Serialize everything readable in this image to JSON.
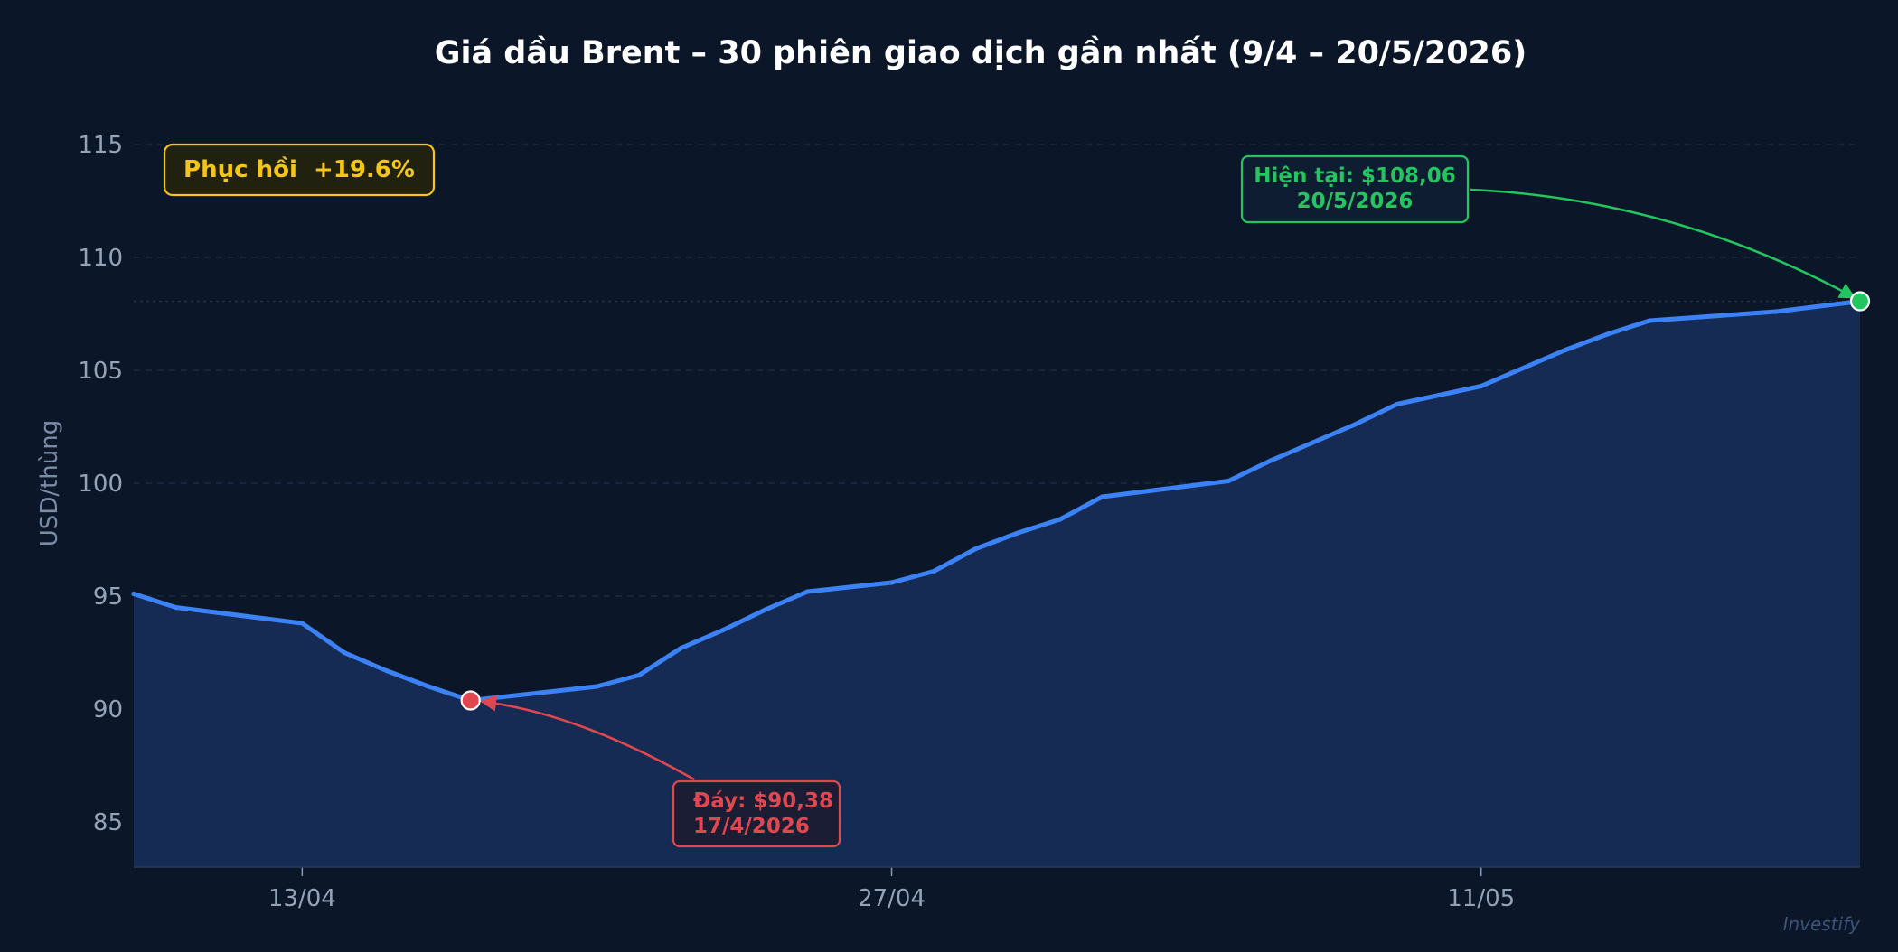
{
  "chart_data": {
    "type": "area",
    "title": "Giá dầu Brent – 30 phiên giao dịch gần nhất (9/4 – 20/5/2026)",
    "ylabel": "USD/thùng",
    "xlabel": "",
    "ylim": [
      83,
      117
    ],
    "yticks": [
      85,
      90,
      95,
      100,
      105,
      110,
      115
    ],
    "xlim": [
      "2026-04-09",
      "2026-05-20"
    ],
    "xticks": [
      {
        "date": "2026-04-13",
        "label": "13/04"
      },
      {
        "date": "2026-04-27",
        "label": "27/04"
      },
      {
        "date": "2026-05-11",
        "label": "11/05"
      }
    ],
    "grid": true,
    "series": [
      {
        "points": [
          {
            "x": "2026-04-09",
            "y": 95.1
          },
          {
            "x": "2026-04-10",
            "y": 94.5
          },
          {
            "x": "2026-04-13",
            "y": 93.8
          },
          {
            "x": "2026-04-14",
            "y": 92.5
          },
          {
            "x": "2026-04-15",
            "y": 91.7
          },
          {
            "x": "2026-04-16",
            "y": 91.0
          },
          {
            "x": "2026-04-17",
            "y": 90.38
          },
          {
            "x": "2026-04-20",
            "y": 91.0
          },
          {
            "x": "2026-04-21",
            "y": 91.5
          },
          {
            "x": "2026-04-22",
            "y": 92.7
          },
          {
            "x": "2026-04-23",
            "y": 93.5
          },
          {
            "x": "2026-04-24",
            "y": 94.4
          },
          {
            "x": "2026-04-25",
            "y": 95.2
          },
          {
            "x": "2026-04-27",
            "y": 95.6
          },
          {
            "x": "2026-04-28",
            "y": 96.1
          },
          {
            "x": "2026-04-29",
            "y": 97.1
          },
          {
            "x": "2026-04-30",
            "y": 97.8
          },
          {
            "x": "2026-05-01",
            "y": 98.4
          },
          {
            "x": "2026-05-02",
            "y": 99.4
          },
          {
            "x": "2026-05-05",
            "y": 100.1
          },
          {
            "x": "2026-05-06",
            "y": 101.0
          },
          {
            "x": "2026-05-07",
            "y": 101.8
          },
          {
            "x": "2026-05-08",
            "y": 102.6
          },
          {
            "x": "2026-05-09",
            "y": 103.5
          },
          {
            "x": "2026-05-11",
            "y": 104.3
          },
          {
            "x": "2026-05-13",
            "y": 105.9
          },
          {
            "x": "2026-05-14",
            "y": 106.6
          },
          {
            "x": "2026-05-15",
            "y": 107.2
          },
          {
            "x": "2026-05-18",
            "y": 107.6
          },
          {
            "x": "2026-05-20",
            "y": 108.06
          }
        ]
      }
    ],
    "annotations": [
      {
        "type": "badge",
        "text": "Phục hồi  +19.6%"
      },
      {
        "type": "low",
        "x": "2026-04-17",
        "y": 90.38,
        "line1": "Đáy: $90,38",
        "line2": "17/4/2026"
      },
      {
        "type": "high",
        "x": "2026-05-20",
        "y": 108.06,
        "line1": "Hiện tại: $108,06",
        "line2": "20/5/2026"
      }
    ],
    "reference_lines": [
      108.06,
      90.38
    ],
    "watermark": "Investify",
    "colors": {
      "background": "#0b1628",
      "line": "#3b82f6",
      "area": "#172c55",
      "low": "#e0474e",
      "high": "#22c55e",
      "badge": "#f5c518"
    }
  }
}
